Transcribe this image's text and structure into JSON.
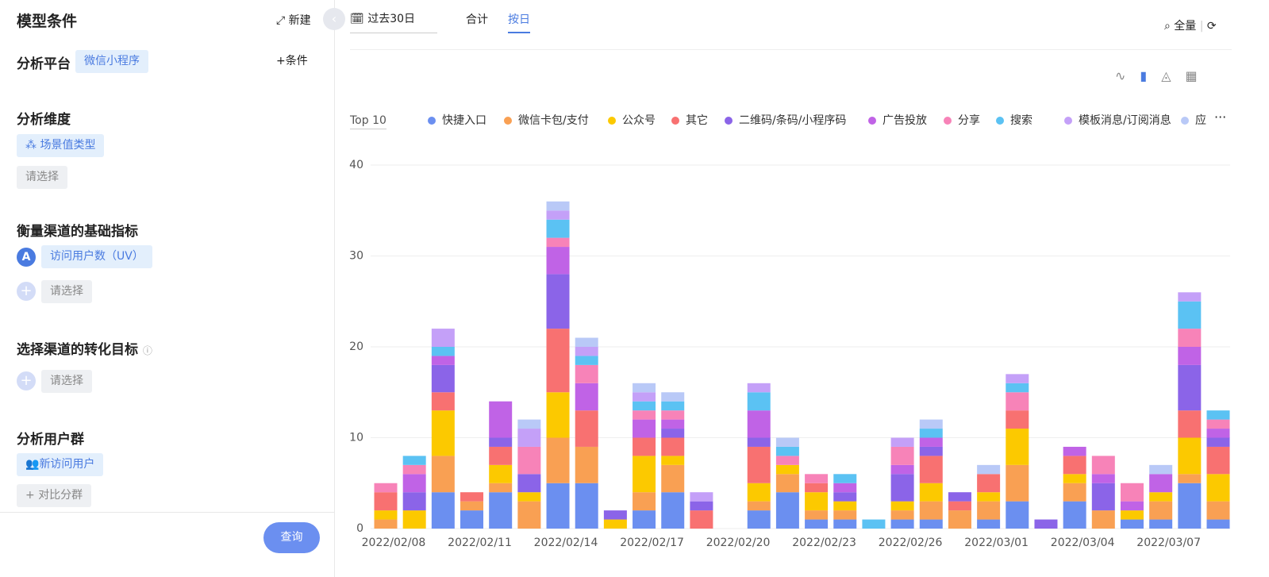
{
  "sidebar": {
    "title": "模型条件",
    "new_button": "新建",
    "platform": {
      "label": "分析平台",
      "tag": "微信小程序",
      "add": "条件"
    },
    "dimension": {
      "label": "分析维度",
      "tag": "场景值类型",
      "placeholder": "请选择"
    },
    "metric": {
      "label": "衡量渠道的基础指标",
      "badge": "A",
      "tag": "访问用户数（UV）",
      "placeholder": "请选择"
    },
    "goal": {
      "label": "选择渠道的转化目标",
      "placeholder": "请选择"
    },
    "group": {
      "label": "分析用户群",
      "tag": "新访问用户",
      "compare": "对比分群"
    },
    "query_button": "查询"
  },
  "toolbar": {
    "date_range": "过去30日",
    "tabs": [
      "合计",
      "按日"
    ],
    "scope": "全量",
    "top": "Top 10"
  },
  "chart_data": {
    "type": "stacked_bar",
    "categories": [
      "2022/02/08",
      null,
      null,
      "2022/02/11",
      null,
      null,
      "2022/02/14",
      null,
      null,
      "2022/02/17",
      null,
      null,
      "2022/02/20",
      null,
      null,
      "2022/02/23",
      null,
      null,
      "2022/02/26",
      null,
      null,
      "2022/03/01",
      null,
      null,
      "2022/03/04",
      null,
      null,
      "2022/03/07",
      null,
      null
    ],
    "ylim": [
      0,
      40
    ],
    "yticks": [
      0,
      10,
      20,
      30,
      40
    ],
    "grid": true,
    "series": [
      {
        "name": "快捷入口",
        "color": "#6b8ff0",
        "values": [
          0,
          0,
          4,
          2,
          4,
          0,
          5,
          5,
          0,
          2,
          4,
          0,
          0,
          2,
          4,
          1,
          1,
          0,
          1,
          1,
          0,
          1,
          3,
          0,
          3,
          0,
          1,
          1,
          5,
          1
        ]
      },
      {
        "name": "微信卡包/支付",
        "color": "#f9a053",
        "values": [
          1,
          0,
          4,
          1,
          1,
          3,
          5,
          4,
          0,
          2,
          3,
          0,
          0,
          1,
          2,
          1,
          1,
          0,
          1,
          2,
          2,
          2,
          4,
          0,
          2,
          2,
          0,
          2,
          1,
          2
        ]
      },
      {
        "name": "公众号",
        "color": "#fcc900",
        "values": [
          1,
          2,
          5,
          0,
          2,
          1,
          5,
          0,
          1,
          4,
          1,
          0,
          0,
          2,
          1,
          2,
          1,
          0,
          1,
          2,
          0,
          1,
          4,
          0,
          1,
          0,
          1,
          1,
          4,
          3
        ]
      },
      {
        "name": "其它",
        "color": "#f87171",
        "values": [
          2,
          0,
          2,
          1,
          2,
          0,
          7,
          4,
          0,
          2,
          2,
          2,
          0,
          4,
          0,
          1,
          0,
          0,
          0,
          3,
          1,
          2,
          2,
          0,
          2,
          0,
          0,
          0,
          3,
          3
        ]
      },
      {
        "name": "二维码/条码/小程序码",
        "color": "#8b64e8",
        "values": [
          0,
          2,
          3,
          0,
          1,
          2,
          6,
          0,
          1,
          0,
          1,
          1,
          0,
          1,
          0,
          0,
          1,
          0,
          3,
          1,
          1,
          0,
          0,
          1,
          0,
          3,
          0,
          0,
          5,
          1
        ]
      },
      {
        "name": "广告投放",
        "color": "#c063e6",
        "values": [
          0,
          2,
          1,
          0,
          4,
          0,
          3,
          3,
          0,
          2,
          1,
          0,
          0,
          3,
          0,
          0,
          1,
          0,
          1,
          1,
          0,
          0,
          0,
          0,
          1,
          1,
          1,
          2,
          2,
          1
        ]
      },
      {
        "name": "分享",
        "color": "#f783b8",
        "values": [
          1,
          1,
          0,
          0,
          0,
          3,
          1,
          2,
          0,
          1,
          1,
          0,
          0,
          0,
          1,
          1,
          0,
          0,
          2,
          0,
          0,
          0,
          2,
          0,
          0,
          2,
          2,
          0,
          2,
          1
        ]
      },
      {
        "name": "搜索",
        "color": "#5bc2f3",
        "values": [
          0,
          1,
          1,
          0,
          0,
          0,
          2,
          1,
          0,
          1,
          1,
          0,
          0,
          2,
          1,
          0,
          1,
          1,
          0,
          1,
          0,
          0,
          1,
          0,
          0,
          0,
          0,
          0,
          3,
          1
        ]
      },
      {
        "name": "模板消息/订阅消息",
        "color": "#c4a0f8",
        "values": [
          0,
          0,
          2,
          0,
          0,
          2,
          1,
          1,
          0,
          1,
          0,
          1,
          0,
          1,
          0,
          0,
          0,
          0,
          1,
          0,
          0,
          0,
          1,
          0,
          0,
          0,
          0,
          0,
          1,
          0
        ]
      },
      {
        "name": "应",
        "color": "#b9c9f7",
        "values": [
          0,
          0,
          0,
          0,
          0,
          1,
          1,
          1,
          0,
          1,
          1,
          0,
          0,
          0,
          1,
          0,
          0,
          0,
          0,
          1,
          0,
          1,
          0,
          0,
          0,
          0,
          0,
          1,
          0,
          0
        ]
      }
    ]
  }
}
